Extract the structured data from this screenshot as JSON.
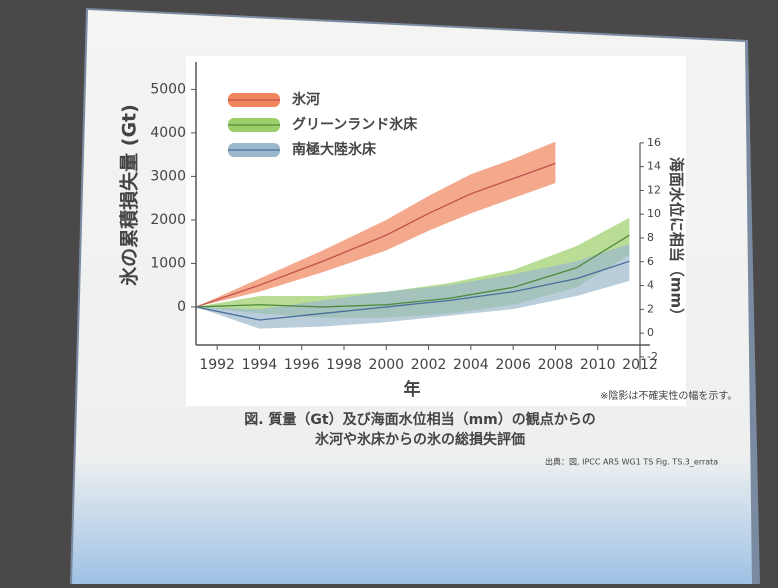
{
  "chart_data": {
    "type": "band-line",
    "ylabel": "氷の累積損失量 (Gt)",
    "y2label": "海面水位に相当（mm）",
    "xlabel": "年",
    "caption": [
      "図. 質量（Gt）及び海面水位相当（mm）の観点からの",
      "氷河や氷床からの氷の総損失評価"
    ],
    "note": "※陰影は不確実性の幅を示す。",
    "source": "出典：図, IPCC AR5 WG1 TS Fig. TS.3_errata",
    "xlim": [
      1991,
      2012
    ],
    "xticks": [
      1992,
      1994,
      1996,
      1998,
      2000,
      2002,
      2004,
      2006,
      2008,
      2010,
      2012
    ],
    "ylim": [
      -875,
      5630
    ],
    "yticks": [
      0,
      1000,
      2000,
      3000,
      4000,
      5000
    ],
    "y2lim": [
      -1,
      22.8
    ],
    "y2ticks": [
      -2,
      0,
      2,
      4,
      6,
      8,
      10,
      12,
      14,
      16
    ],
    "series": [
      {
        "name": "氷河",
        "color": "#c0504d",
        "band_color": "#f0845c",
        "x": [
          1991,
          1994,
          1997,
          2000,
          2002,
          2004,
          2006,
          2008
        ],
        "values": [
          0,
          500,
          1050,
          1650,
          2150,
          2600,
          2950,
          3300
        ],
        "upper": [
          0,
          650,
          1300,
          2000,
          2550,
          3050,
          3400,
          3800
        ],
        "lower": [
          0,
          350,
          800,
          1300,
          1750,
          2150,
          2500,
          2850
        ]
      },
      {
        "name": "グリーンランド氷床",
        "color": "#4f8a3c",
        "band_color": "#9ccf6a",
        "x": [
          1991,
          1994,
          1997,
          2000,
          2003,
          2006,
          2009,
          2011.5
        ],
        "values": [
          0,
          50,
          0,
          50,
          200,
          450,
          900,
          1650
        ],
        "upper": [
          0,
          250,
          250,
          350,
          550,
          850,
          1400,
          2050
        ],
        "lower": [
          0,
          -150,
          -250,
          -250,
          -150,
          50,
          450,
          1200
        ]
      },
      {
        "name": "南極大陸氷床",
        "color": "#4a6f9a",
        "band_color": "#9bb8cc",
        "x": [
          1991,
          1994,
          1997,
          2000,
          2003,
          2006,
          2009,
          2011.5
        ],
        "values": [
          0,
          -300,
          -150,
          0,
          150,
          350,
          650,
          1050
        ],
        "upper": [
          0,
          -50,
          150,
          350,
          500,
          750,
          1050,
          1450
        ],
        "lower": [
          0,
          -500,
          -450,
          -350,
          -200,
          -50,
          250,
          600
        ]
      }
    ]
  }
}
